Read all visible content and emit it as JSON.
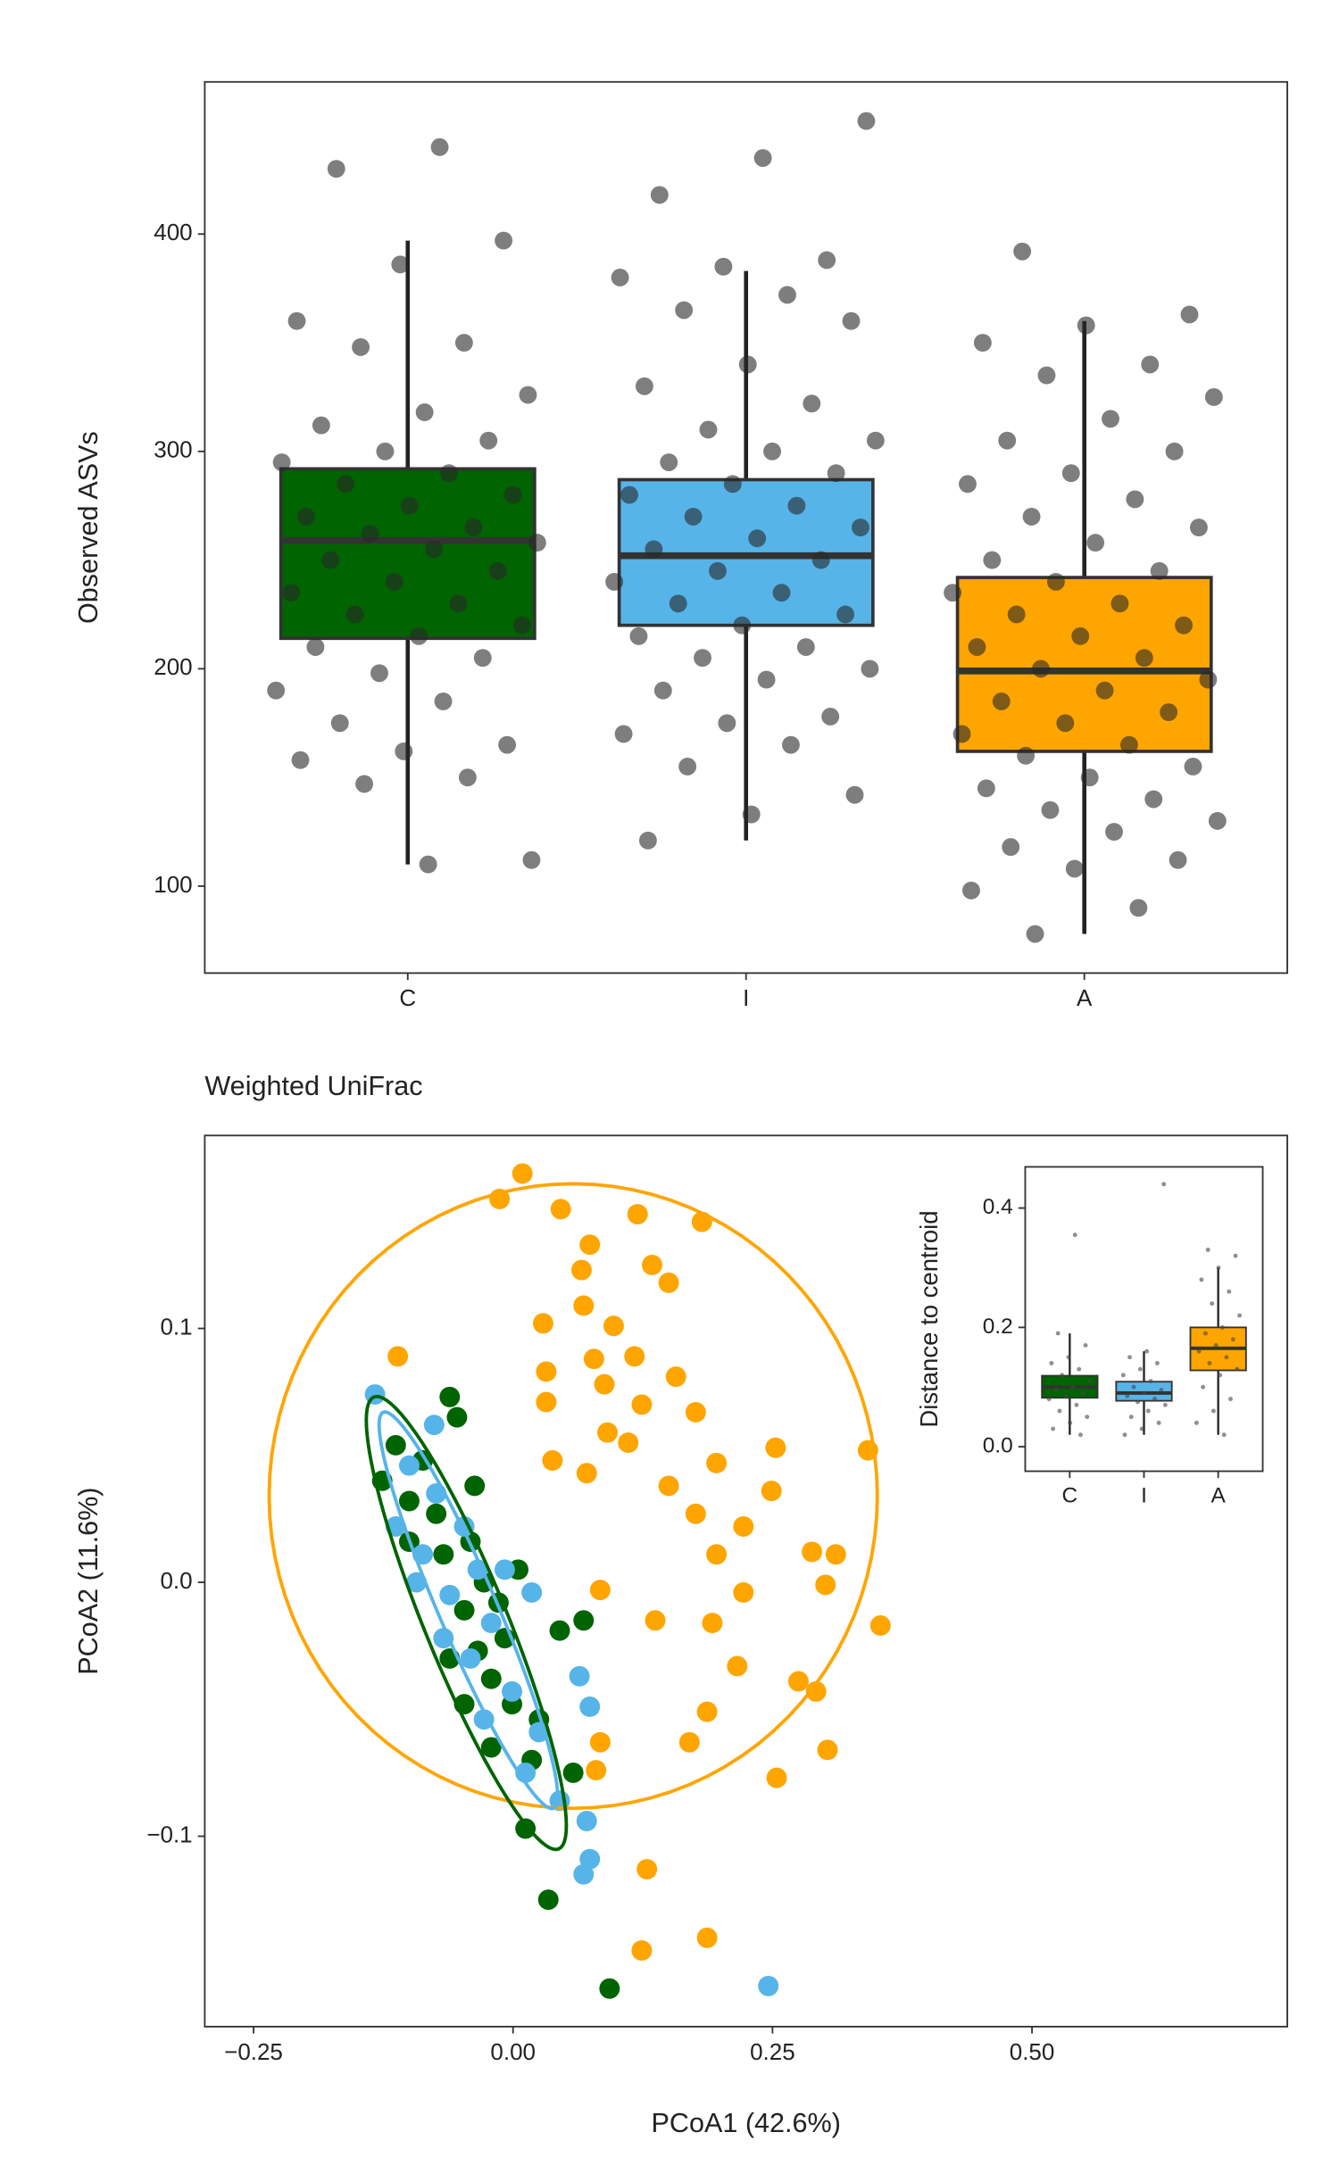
{
  "chart_data": [
    {
      "type": "box",
      "ylabel": "Observed ASVs",
      "categories": [
        "C",
        "I",
        "A"
      ],
      "colors": [
        "#006400",
        "#56B4E9",
        "#FFA500"
      ],
      "ylim": [
        60,
        470
      ],
      "yticks": [
        100,
        200,
        300,
        400
      ],
      "boxes": [
        {
          "whisker_low": 110,
          "q1": 214,
          "median": 259,
          "q3": 292,
          "whisker_high": 397,
          "points": [
            440,
            430,
            397,
            386,
            360,
            350,
            348,
            326,
            318,
            312,
            305,
            300,
            295,
            290,
            285,
            280,
            275,
            270,
            265,
            262,
            258,
            255,
            250,
            245,
            240,
            235,
            230,
            225,
            220,
            215,
            210,
            205,
            198,
            190,
            185,
            175,
            165,
            162,
            158,
            150,
            147,
            112,
            110
          ]
        },
        {
          "whisker_low": 121,
          "q1": 220,
          "median": 252,
          "q3": 287,
          "whisker_high": 383,
          "points": [
            452,
            435,
            418,
            388,
            385,
            380,
            372,
            365,
            360,
            340,
            330,
            322,
            310,
            305,
            300,
            295,
            290,
            285,
            280,
            275,
            270,
            265,
            260,
            255,
            250,
            245,
            240,
            235,
            230,
            225,
            220,
            215,
            210,
            205,
            200,
            195,
            190,
            178,
            175,
            170,
            165,
            155,
            142,
            133,
            121
          ]
        },
        {
          "whisker_low": 78,
          "q1": 162,
          "median": 199,
          "q3": 242,
          "whisker_high": 360,
          "points": [
            392,
            363,
            358,
            350,
            340,
            335,
            325,
            315,
            305,
            300,
            290,
            285,
            278,
            270,
            265,
            258,
            250,
            245,
            240,
            235,
            230,
            225,
            220,
            215,
            210,
            205,
            200,
            195,
            190,
            185,
            180,
            175,
            170,
            165,
            160,
            155,
            150,
            145,
            140,
            135,
            130,
            125,
            118,
            112,
            108,
            98,
            90,
            78
          ]
        }
      ]
    },
    {
      "type": "scatter",
      "title": "Weighted UniFrac",
      "xlabel": "PCoA1 (42.6%)",
      "ylabel": "PCoA2 (11.6%)",
      "xlim": [
        -0.297,
        0.746
      ],
      "ylim": [
        -0.175,
        0.176
      ],
      "xticks": [
        {
          "value": -0.25,
          "label": "−0.25"
        },
        {
          "value": 0,
          "label": "0.00"
        },
        {
          "value": 0.25,
          "label": "0.25"
        },
        {
          "value": 0.5,
          "label": "0.50"
        }
      ],
      "yticks": [
        {
          "value": -0.1,
          "label": "−0.1"
        },
        {
          "value": 0,
          "label": "0.0"
        },
        0.1
      ],
      "series": [
        {
          "color": "#FFA500",
          "x": [
            0.009,
            -0.013,
            0.046,
            0.12,
            0.182,
            0.074,
            0.134,
            0.066,
            0.15,
            0.029,
            0.097,
            0.068,
            -0.111,
            0.078,
            0.117,
            0.032,
            0.088,
            0.157,
            0.032,
            0.124,
            0.176,
            0.091,
            0.111,
            0.253,
            0.342,
            0.038,
            0.196,
            0.071,
            0.15,
            0.249,
            0.176,
            0.222,
            0.196,
            0.288,
            0.311,
            0.301,
            0.222,
            0.084,
            0.137,
            0.192,
            0.216,
            0.275,
            0.292,
            0.187,
            0.17,
            0.084,
            0.303,
            0.254,
            0.08,
            0.354,
            0.129,
            0.187,
            0.124
          ],
          "y": [
            0.161,
            0.151,
            0.147,
            0.145,
            0.142,
            0.133,
            0.125,
            0.123,
            0.118,
            0.102,
            0.101,
            0.109,
            0.089,
            0.088,
            0.089,
            0.083,
            0.078,
            0.081,
            0.071,
            0.07,
            0.067,
            0.059,
            0.055,
            0.053,
            0.052,
            0.048,
            0.047,
            0.043,
            0.038,
            0.036,
            0.027,
            0.022,
            0.011,
            0.012,
            0.011,
            -0.001,
            -0.004,
            -0.003,
            -0.015,
            -0.016,
            -0.033,
            -0.039,
            -0.043,
            -0.051,
            -0.063,
            -0.063,
            -0.066,
            -0.077,
            -0.074,
            -0.017,
            -0.113,
            -0.14,
            -0.145
          ],
          "ellipse": {
            "center": [
              0.058,
              0.034
            ],
            "axis1": [
              0.293,
              0
            ],
            "axis2": [
              0,
              0.123
            ]
          }
        },
        {
          "color": "#006400",
          "x": [
            -0.061,
            -0.054,
            -0.113,
            -0.037,
            -0.1,
            -0.074,
            -0.041,
            0.005,
            -0.028,
            -0.047,
            -0.008,
            -0.061,
            -0.021,
            0.045,
            0.068,
            0.025,
            0.058,
            0.012,
            0.034,
            0.093,
            -0.087,
            -0.014,
            -0.034,
            -0.001,
            0.018,
            -0.126,
            -0.067,
            -0.021,
            -0.1,
            -0.047
          ],
          "y": [
            0.073,
            0.065,
            0.054,
            0.038,
            0.032,
            0.027,
            0.016,
            0.005,
            0.0,
            -0.011,
            -0.022,
            -0.03,
            -0.038,
            -0.019,
            -0.015,
            -0.054,
            -0.075,
            -0.097,
            -0.125,
            -0.16,
            0.048,
            -0.008,
            -0.027,
            -0.048,
            -0.07,
            0.04,
            0.011,
            -0.065,
            0.016,
            -0.048
          ],
          "ellipse": {
            "center": [
              -0.045,
              -0.016
            ],
            "axis1": [
              0.089,
              -0.089
            ],
            "axis2": [
              0.037,
              0.0062
            ]
          }
        },
        {
          "color": "#56B4E9",
          "x": [
            -0.133,
            -0.076,
            -0.1,
            -0.074,
            -0.047,
            -0.087,
            -0.034,
            0.018,
            -0.061,
            -0.021,
            -0.041,
            -0.001,
            0.025,
            0.064,
            0.074,
            0.071,
            0.074,
            0.068,
            0.246,
            -0.113,
            -0.093,
            -0.008,
            0.012,
            0.045,
            -0.028,
            -0.067
          ],
          "y": [
            0.074,
            0.062,
            0.046,
            0.035,
            0.022,
            0.011,
            0.005,
            -0.004,
            -0.005,
            -0.016,
            -0.03,
            -0.043,
            -0.059,
            -0.037,
            -0.049,
            -0.094,
            -0.109,
            -0.115,
            -0.159,
            0.022,
            0.0,
            0.005,
            -0.075,
            -0.086,
            -0.054,
            -0.022
          ],
          "ellipse": {
            "center": [
              -0.043,
              -0.011
            ],
            "axis1": [
              0.082,
              -0.078
            ],
            "axis2": [
              0.026,
              0.0043
            ]
          }
        }
      ]
    },
    {
      "type": "box",
      "ylabel": "Distance to centroid",
      "categories": [
        "C",
        "I",
        "A"
      ],
      "colors": [
        "#006400",
        "#56B4E9",
        "#FFA500"
      ],
      "ylim": [
        -0.041,
        0.469
      ],
      "yticks": [
        {
          "value": 0,
          "label": "0.0"
        },
        0.2,
        0.4
      ],
      "boxes": [
        {
          "whisker_low": 0.02,
          "q1": 0.082,
          "median": 0.1,
          "q3": 0.119,
          "whisker_high": 0.19,
          "points": [
            0.355,
            0.19,
            0.17,
            0.15,
            0.14,
            0.13,
            0.12,
            0.11,
            0.1,
            0.095,
            0.09,
            0.085,
            0.08,
            0.07,
            0.06,
            0.05,
            0.04,
            0.03,
            0.02
          ]
        },
        {
          "whisker_low": 0.02,
          "q1": 0.077,
          "median": 0.09,
          "q3": 0.109,
          "whisker_high": 0.16,
          "points": [
            0.44,
            0.16,
            0.15,
            0.14,
            0.13,
            0.12,
            0.11,
            0.1,
            0.095,
            0.09,
            0.085,
            0.08,
            0.075,
            0.07,
            0.06,
            0.05,
            0.04,
            0.03,
            0.02
          ]
        },
        {
          "whisker_low": 0.02,
          "q1": 0.128,
          "median": 0.165,
          "q3": 0.2,
          "whisker_high": 0.3,
          "points": [
            0.33,
            0.32,
            0.3,
            0.28,
            0.26,
            0.24,
            0.22,
            0.2,
            0.19,
            0.18,
            0.17,
            0.16,
            0.15,
            0.14,
            0.13,
            0.12,
            0.1,
            0.08,
            0.06,
            0.04,
            0.02
          ]
        }
      ]
    }
  ]
}
